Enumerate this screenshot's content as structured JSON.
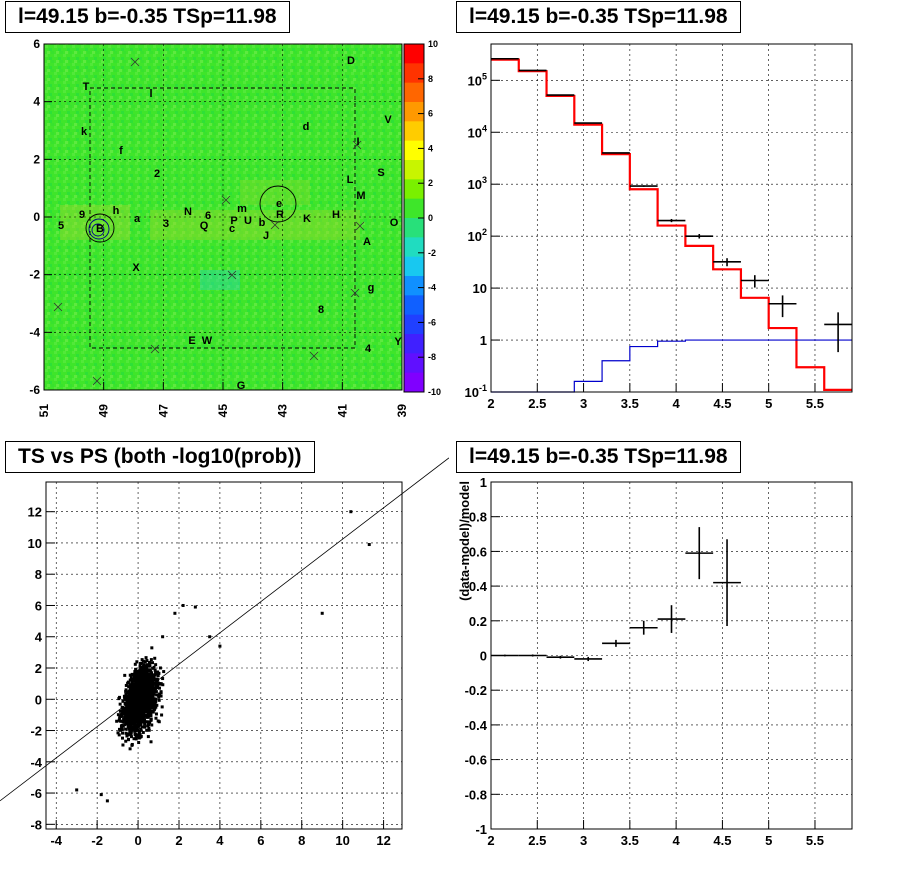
{
  "panels": {
    "skymap": {
      "title": "l=49.15 b=-0.35 TSp=11.98",
      "x_ticks": [
        "51",
        "49",
        "47",
        "45",
        "43",
        "41",
        "39"
      ],
      "y_ticks": [
        "6",
        "4",
        "2",
        "0",
        "-2",
        "-4",
        "-6"
      ],
      "colorbar_ticks": [
        "10",
        "8",
        "6",
        "4",
        "2",
        "0",
        "-2",
        "-4",
        "-6",
        "-8",
        "-10"
      ],
      "source_labels": [
        "D",
        "T",
        "l",
        "V",
        "k",
        "d",
        "I",
        "f",
        "2",
        "L",
        "S",
        "M",
        "9",
        "h",
        "a",
        "N",
        "6",
        "m",
        "P",
        "U",
        "b",
        "R",
        "e",
        "K",
        "H",
        "5",
        "3",
        "Q",
        "c",
        "J",
        "O",
        "A",
        "X",
        "g",
        "8",
        "E",
        "W",
        "4",
        "Y",
        "G",
        "B"
      ]
    },
    "spectrum": {
      "title": "l=49.15 b=-0.35 TSp=11.98",
      "x_ticks": [
        "2",
        "2.5",
        "3",
        "3.5",
        "4",
        "4.5",
        "5",
        "5.5"
      ],
      "y_ticks": [
        "10^5",
        "10^4",
        "10^3",
        "10^2",
        "10",
        "1",
        "10^-1"
      ]
    },
    "scatter": {
      "title": "TS vs PS (both -log10(prob))",
      "x_ticks": [
        "-4",
        "-2",
        "0",
        "2",
        "4",
        "6",
        "8",
        "10",
        "12"
      ],
      "y_ticks": [
        "12",
        "10",
        "8",
        "6",
        "4",
        "2",
        "0",
        "-2",
        "-4",
        "-6",
        "-8"
      ]
    },
    "residual": {
      "title": "l=49.15 b=-0.35 TSp=11.98",
      "ylabel": "(data-model)/model",
      "x_ticks": [
        "2",
        "2.5",
        "3",
        "3.5",
        "4",
        "4.5",
        "5",
        "5.5"
      ],
      "y_ticks": [
        "1",
        "0.8",
        "0.6",
        "0.4",
        "0.2",
        "0",
        "-0.2",
        "-0.4",
        "-0.6",
        "-0.8",
        "-1"
      ]
    }
  },
  "chart_data": [
    {
      "type": "heatmap",
      "title": "l=49.15 b=-0.35 TSp=11.98",
      "xlim": [
        51,
        39
      ],
      "ylim": [
        -6,
        6
      ],
      "colorbar_range": [
        -10,
        10
      ],
      "colors": {
        "background": "#3ee62a",
        "low": "#8c00ff",
        "high": "#ff0000"
      },
      "grid": true
    },
    {
      "type": "line",
      "title": "l=49.15 b=-0.35 TSp=11.98",
      "xlim": [
        2,
        5.9
      ],
      "ylim": [
        0.1,
        500000
      ],
      "ylog": true,
      "grid": true,
      "bin_edges": [
        2.0,
        2.3,
        2.6,
        2.9,
        3.2,
        3.5,
        3.8,
        4.1,
        4.4,
        4.7,
        5.0,
        5.3,
        5.6,
        5.9
      ],
      "series": [
        {
          "color": "#ff0000",
          "values": [
            250000,
            150000,
            50000,
            14000,
            3800,
            800,
            160,
            65,
            23,
            6.5,
            1.7,
            0.3,
            0.11
          ]
        },
        {
          "color": "#0000cc",
          "values": [
            0.1,
            0.1,
            0.1,
            0.16,
            0.4,
            0.75,
            0.95,
            1,
            1,
            1,
            1,
            1,
            1
          ]
        },
        {
          "color": "#000000",
          "points": [
            {
              "x": 2.15,
              "y": 260000
            },
            {
              "x": 2.45,
              "y": 155000
            },
            {
              "x": 2.75,
              "y": 52000
            },
            {
              "x": 3.05,
              "y": 15000
            },
            {
              "x": 3.35,
              "y": 4000
            },
            {
              "x": 3.65,
              "y": 920
            },
            {
              "x": 3.95,
              "y": 200
            },
            {
              "x": 4.25,
              "y": 100
            },
            {
              "x": 4.55,
              "y": 32
            },
            {
              "x": 4.85,
              "y": 14
            },
            {
              "x": 5.15,
              "y": 5
            },
            {
              "x": 5.75,
              "y": 2
            }
          ]
        }
      ]
    },
    {
      "type": "scatter",
      "title": "TS vs PS (both -log10(prob))",
      "xlim": [
        -4.5,
        12.9
      ],
      "ylim": [
        -8.3,
        13.9
      ],
      "grid": true,
      "reference_line": {
        "slope": 1,
        "intercept": 0
      },
      "outliers": [
        [
          10.4,
          12.0
        ],
        [
          11.3,
          9.9
        ],
        [
          9.0,
          5.5
        ],
        [
          2.2,
          6.0
        ],
        [
          2.8,
          5.9
        ],
        [
          1.8,
          5.5
        ],
        [
          3.5,
          4.0
        ],
        [
          4.0,
          3.4
        ],
        [
          -3.0,
          -5.8
        ],
        [
          -1.8,
          -6.1
        ],
        [
          -1.5,
          -6.5
        ],
        [
          1.2,
          4.0
        ]
      ]
    },
    {
      "type": "scatter",
      "title": "l=49.15 b=-0.35 TSp=11.98",
      "ylabel": "(data-model)/model",
      "xlim": [
        2,
        5.9
      ],
      "ylim": [
        -1,
        1
      ],
      "grid": true,
      "points": [
        {
          "x": 2.15,
          "y": 0.0,
          "dx": 0.15,
          "dy": 0.005
        },
        {
          "x": 2.45,
          "y": 0.0,
          "dx": 0.15,
          "dy": 0.006
        },
        {
          "x": 2.75,
          "y": -0.01,
          "dx": 0.15,
          "dy": 0.008
        },
        {
          "x": 3.05,
          "y": -0.02,
          "dx": 0.15,
          "dy": 0.012
        },
        {
          "x": 3.35,
          "y": 0.07,
          "dx": 0.15,
          "dy": 0.02
        },
        {
          "x": 3.65,
          "y": 0.16,
          "dx": 0.15,
          "dy": 0.04
        },
        {
          "x": 3.95,
          "y": 0.21,
          "dx": 0.15,
          "dy": 0.08
        },
        {
          "x": 4.25,
          "y": 0.59,
          "dx": 0.15,
          "dy": 0.15
        },
        {
          "x": 4.55,
          "y": 0.42,
          "dx": 0.15,
          "dy": 0.25
        }
      ]
    }
  ]
}
